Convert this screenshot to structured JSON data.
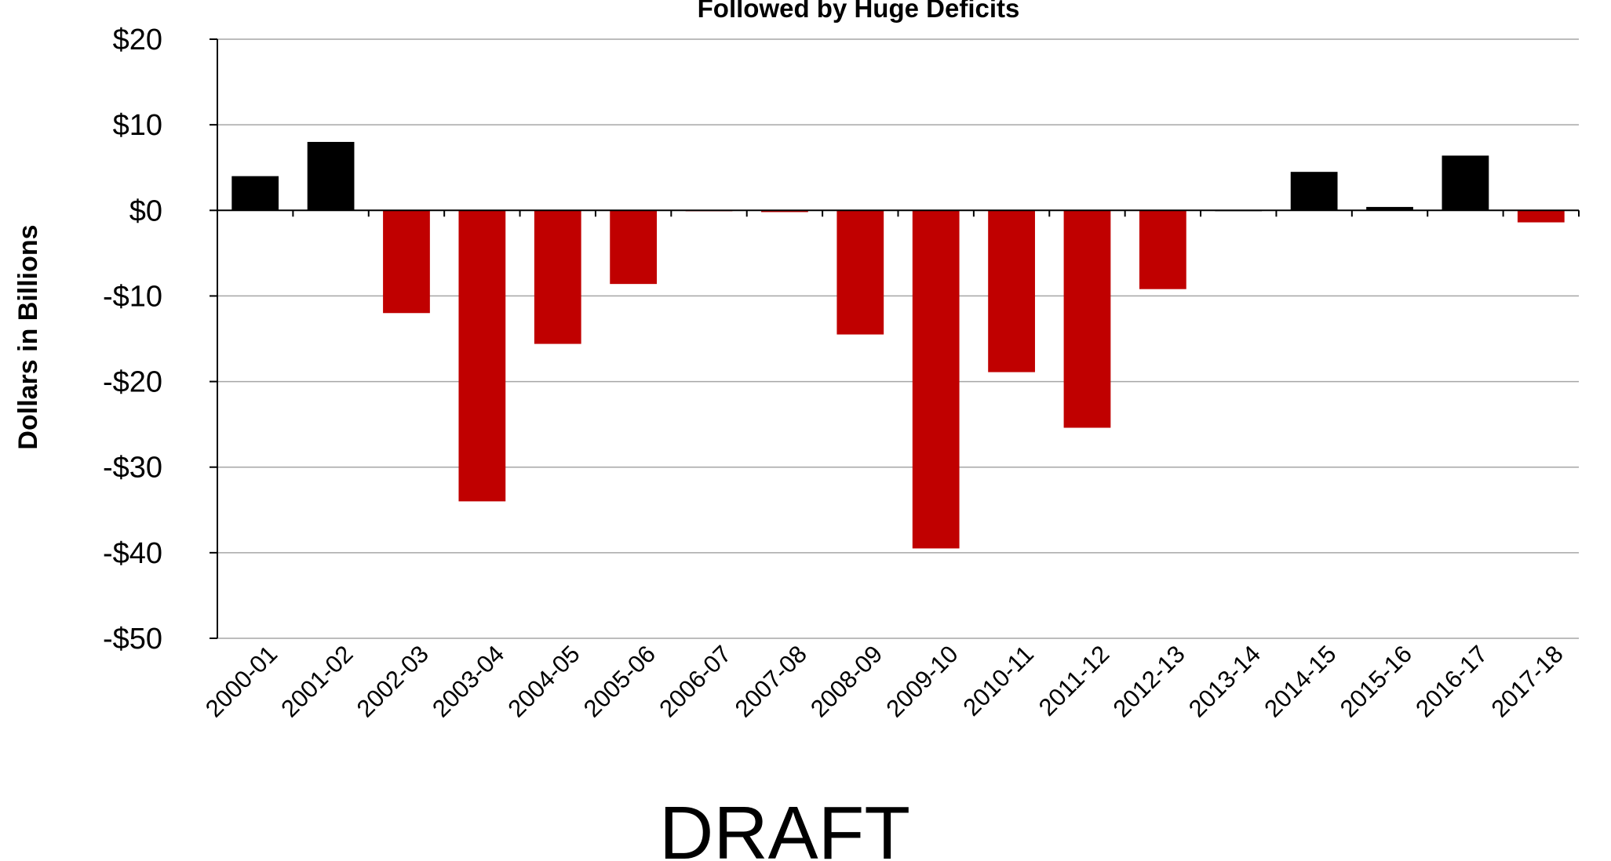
{
  "chart_data": {
    "type": "bar",
    "title": "Followed by Huge Deficits",
    "xlabel": "",
    "ylabel": "Dollars in Billions",
    "ylim": [
      -50,
      20
    ],
    "yticks": [
      20,
      10,
      0,
      -10,
      -20,
      -30,
      -40,
      -50
    ],
    "ytick_labels": [
      "$20",
      "$10",
      "$0",
      "-$10",
      "-$20",
      "-$30",
      "-$40",
      "-$50"
    ],
    "grid": true,
    "categories": [
      "2000-01",
      "2001-02",
      "2002-03",
      "2003-04",
      "2004-05",
      "2005-06",
      "2006-07",
      "2007-08",
      "2008-09",
      "2009-10",
      "2010-11",
      "2011-12",
      "2012-13",
      "2013-14",
      "2014-15",
      "2015-16",
      "2016-17",
      "2017-18"
    ],
    "values": [
      4.0,
      8.0,
      -12.0,
      -34.0,
      -15.6,
      -8.6,
      -0.1,
      -0.2,
      -14.5,
      -39.5,
      -18.9,
      -25.4,
      -9.2,
      0.0,
      4.5,
      0.4,
      6.4,
      -1.4
    ],
    "colors": {
      "positive": "#000000",
      "negative": "#c00000"
    }
  },
  "watermark": "DRAFT"
}
